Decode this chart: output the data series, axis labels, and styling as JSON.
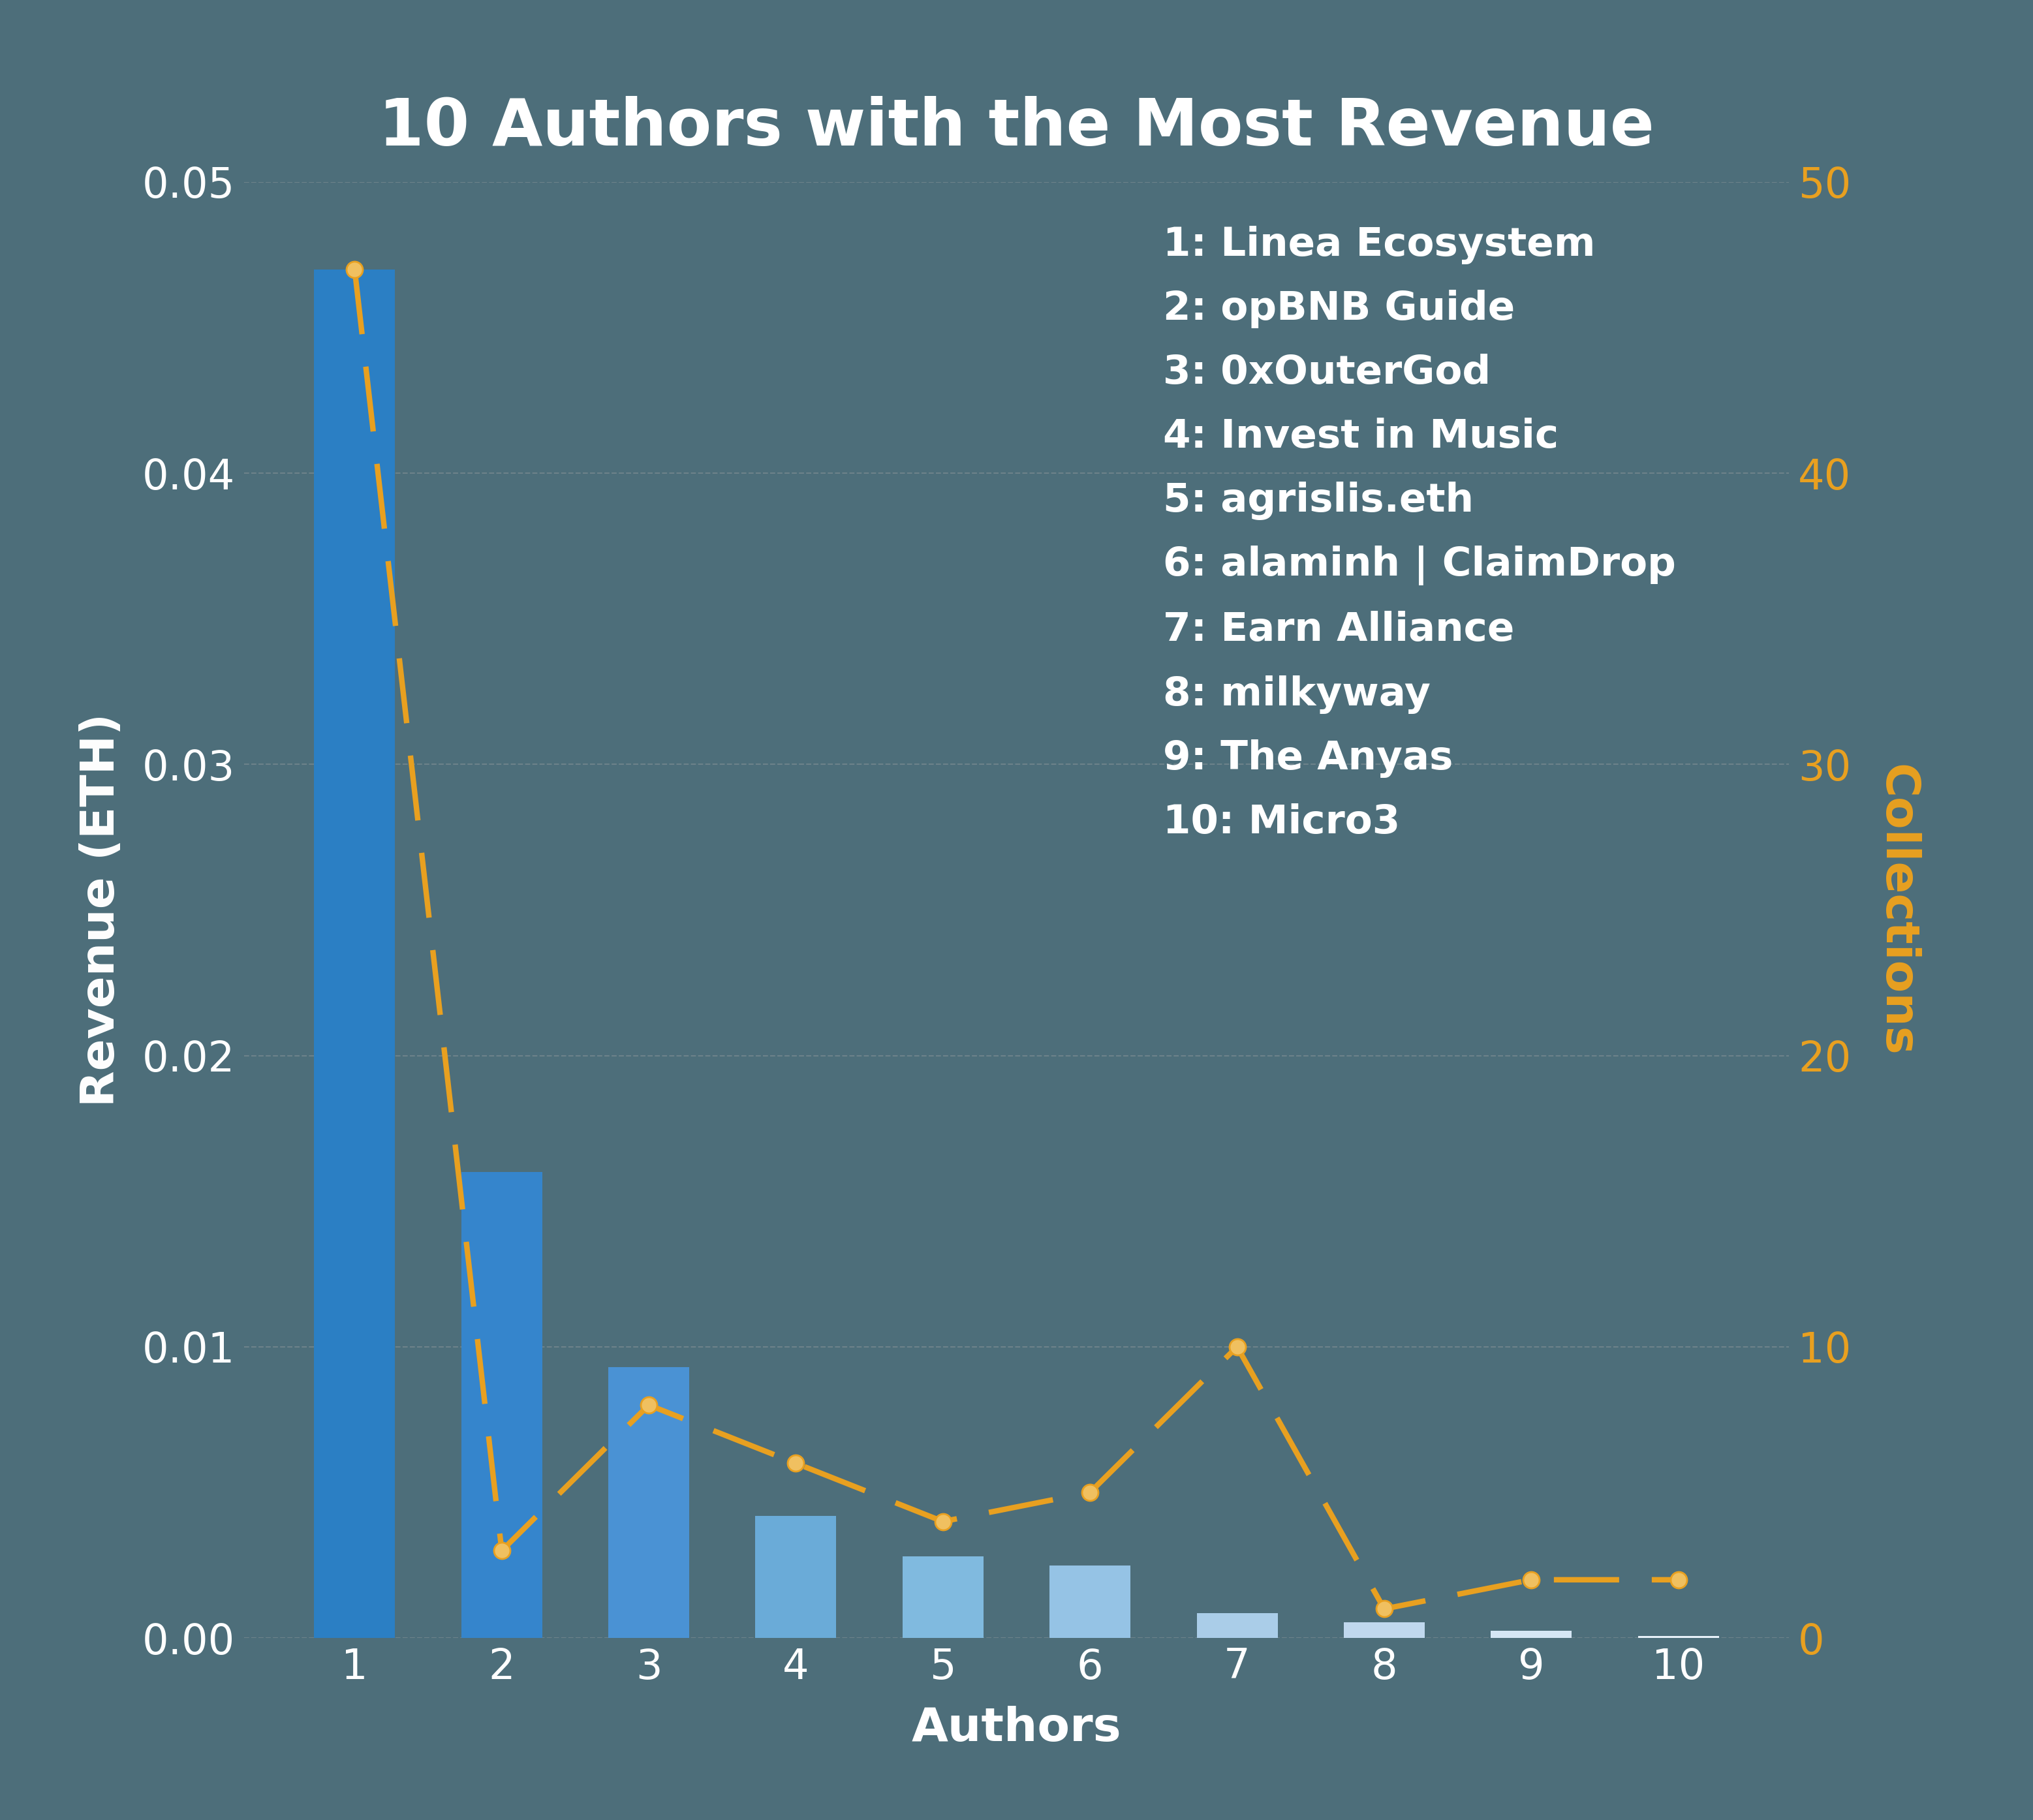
{
  "title": "10 Authors with the Most Revenue",
  "categories": [
    1,
    2,
    3,
    4,
    5,
    6,
    7,
    8,
    9,
    10
  ],
  "revenue": [
    0.047,
    0.016,
    0.0093,
    0.0042,
    0.0028,
    0.0025,
    0.00085,
    0.00055,
    0.00025,
    8e-05
  ],
  "collections": [
    47,
    3,
    8,
    6,
    4,
    5,
    10,
    1,
    2,
    2
  ],
  "bar_colors": [
    "#2B7FC4",
    "#3585CC",
    "#4A92D4",
    "#6AABD8",
    "#80BADF",
    "#95C3E5",
    "#AACDE8",
    "#C0D8EE",
    "#D5E6F4",
    "#E8F2FA"
  ],
  "line_color": "#E8A020",
  "background_color": "#4D6E7A",
  "text_color": "#FFFFFF",
  "xlabel": "Authors",
  "ylabel": "Revenue (ETH)",
  "ylabel2": "Collections",
  "ylim_left": [
    0,
    0.05
  ],
  "ylim_right": [
    0,
    50
  ],
  "yticks_left": [
    0.0,
    0.01,
    0.02,
    0.03,
    0.04,
    0.05
  ],
  "yticks_right": [
    0,
    10,
    20,
    30,
    40,
    50
  ],
  "legend_labels": [
    "1: Linea Ecosystem",
    "2: opBNB Guide",
    "3: 0xOuterGod",
    "4: Invest in Music",
    "5: agrislis.eth",
    "6: alaminh | ClaimDrop",
    "7: Earn Alliance",
    "8: milkyway",
    "9: The Anyas",
    "10: Micro3"
  ],
  "title_fontsize": 72,
  "label_fontsize": 52,
  "tick_fontsize": 46,
  "legend_fontsize": 44,
  "grid_color": "#AAAAAA",
  "grid_alpha": 0.35,
  "bar_width": 0.55,
  "line_width": 6,
  "marker_size": 18,
  "dash_pattern": [
    12,
    6
  ]
}
